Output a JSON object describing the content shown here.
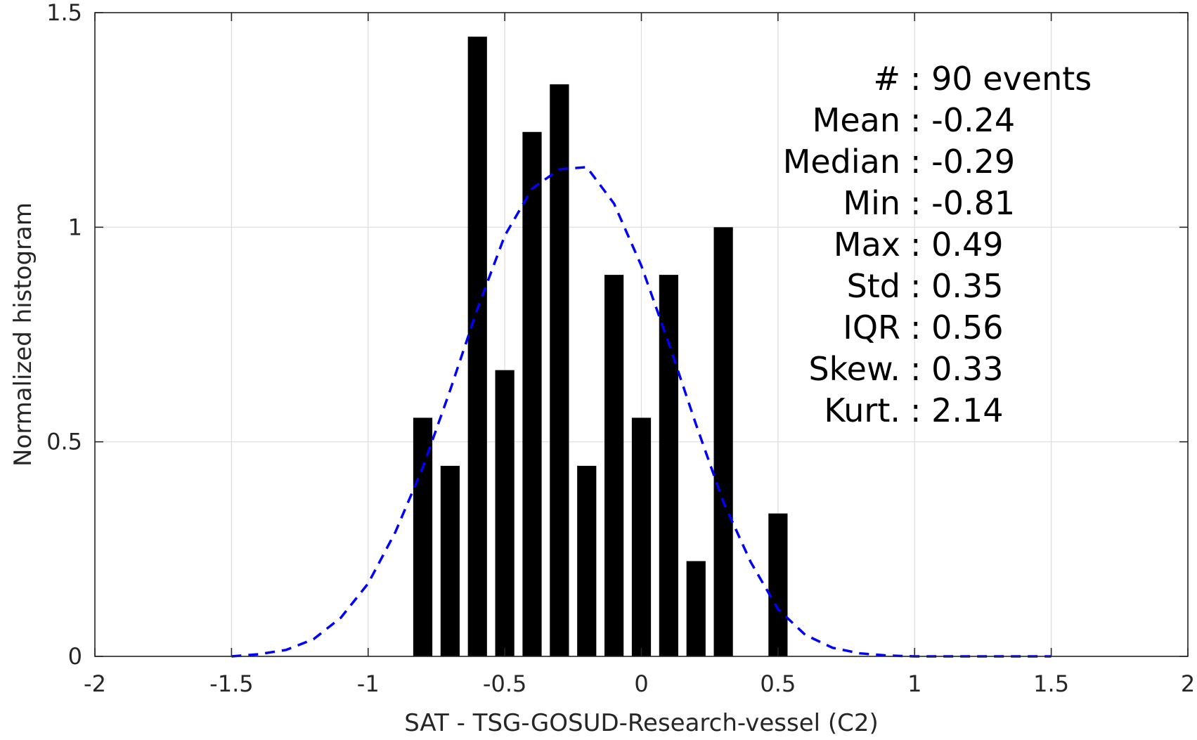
{
  "chart_data": {
    "type": "bar",
    "xlabel": "SAT - TSG-GOSUD-Research-vessel (C2)",
    "ylabel": "Normalized histogram",
    "xlim": [
      -2,
      2
    ],
    "ylim": [
      0,
      1.5
    ],
    "grid": true,
    "x_ticks": [
      -2,
      -1.5,
      -1,
      -0.5,
      0,
      0.5,
      1,
      1.5,
      2
    ],
    "x_tick_labels": [
      "-2",
      "-1.5",
      "-1",
      "-0.5",
      "0",
      "0.5",
      "1",
      "1.5",
      "2"
    ],
    "y_ticks": [
      0,
      0.5,
      1,
      1.5
    ],
    "y_tick_labels": [
      "0",
      "0.5",
      "1",
      "1.5"
    ],
    "bar_width": 0.07,
    "bar_color": "#000000",
    "bars": [
      {
        "x": -0.8,
        "y": 0.556
      },
      {
        "x": -0.7,
        "y": 0.444
      },
      {
        "x": -0.6,
        "y": 1.444
      },
      {
        "x": -0.5,
        "y": 0.667
      },
      {
        "x": -0.4,
        "y": 1.222
      },
      {
        "x": -0.3,
        "y": 1.333
      },
      {
        "x": -0.2,
        "y": 0.444
      },
      {
        "x": -0.1,
        "y": 0.889
      },
      {
        "x": 0.0,
        "y": 0.556
      },
      {
        "x": 0.1,
        "y": 0.889
      },
      {
        "x": 0.2,
        "y": 0.222
      },
      {
        "x": 0.3,
        "y": 1.0
      },
      {
        "x": 0.5,
        "y": 0.333
      }
    ],
    "fit_curve": {
      "style": "dashed",
      "color": "#0000ff",
      "points": [
        [
          -1.5,
          0.0
        ],
        [
          -1.4,
          0.005
        ],
        [
          -1.3,
          0.015
        ],
        [
          -1.2,
          0.04
        ],
        [
          -1.1,
          0.09
        ],
        [
          -1.0,
          0.17
        ],
        [
          -0.9,
          0.29
        ],
        [
          -0.8,
          0.44
        ],
        [
          -0.7,
          0.62
        ],
        [
          -0.6,
          0.81
        ],
        [
          -0.5,
          0.98
        ],
        [
          -0.4,
          1.09
        ],
        [
          -0.3,
          1.135
        ],
        [
          -0.2,
          1.14
        ],
        [
          -0.1,
          1.055
        ],
        [
          0.0,
          0.91
        ],
        [
          0.1,
          0.73
        ],
        [
          0.2,
          0.54
        ],
        [
          0.3,
          0.36
        ],
        [
          0.4,
          0.22
        ],
        [
          0.5,
          0.11
        ],
        [
          0.6,
          0.05
        ],
        [
          0.7,
          0.02
        ],
        [
          0.8,
          0.007
        ],
        [
          0.9,
          0.002
        ],
        [
          1.0,
          0.0
        ],
        [
          1.5,
          0.0
        ]
      ]
    },
    "stats": [
      {
        "key": "stat-count",
        "text": "#   : 90 events"
      },
      {
        "key": "stat-mean",
        "text": "Mean : -0.24"
      },
      {
        "key": "stat-median",
        "text": "Median : -0.29"
      },
      {
        "key": "stat-min",
        "text": "Min : -0.81"
      },
      {
        "key": "stat-max",
        "text": "Max : 0.49"
      },
      {
        "key": "stat-std",
        "text": "Std : 0.35"
      },
      {
        "key": "stat-iqr",
        "text": "IQR : 0.56"
      },
      {
        "key": "stat-skew",
        "text": "Skew. : 0.33"
      },
      {
        "key": "stat-kurt",
        "text": "Kurt. : 2.14"
      }
    ]
  }
}
